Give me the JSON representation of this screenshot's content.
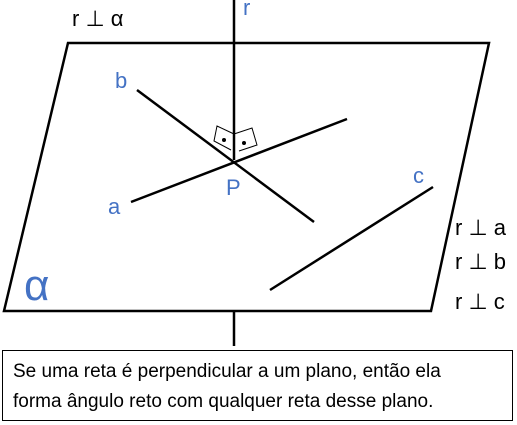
{
  "title": "r ⊥ α",
  "plane_label": "α",
  "line_labels": {
    "r": "r",
    "a": "a",
    "b": "b",
    "c": "c"
  },
  "point_label": "P",
  "relations": [
    "r ⊥ a",
    "r ⊥ b",
    "r ⊥ c"
  ],
  "caption_lines": [
    "Se uma reta é perpendicular a um plano, então ela",
    "forma ângulo reto com qualquer reta desse plano."
  ],
  "colors": {
    "line": "#000000",
    "label_blue": "#4472c4",
    "background": "#ffffff"
  }
}
